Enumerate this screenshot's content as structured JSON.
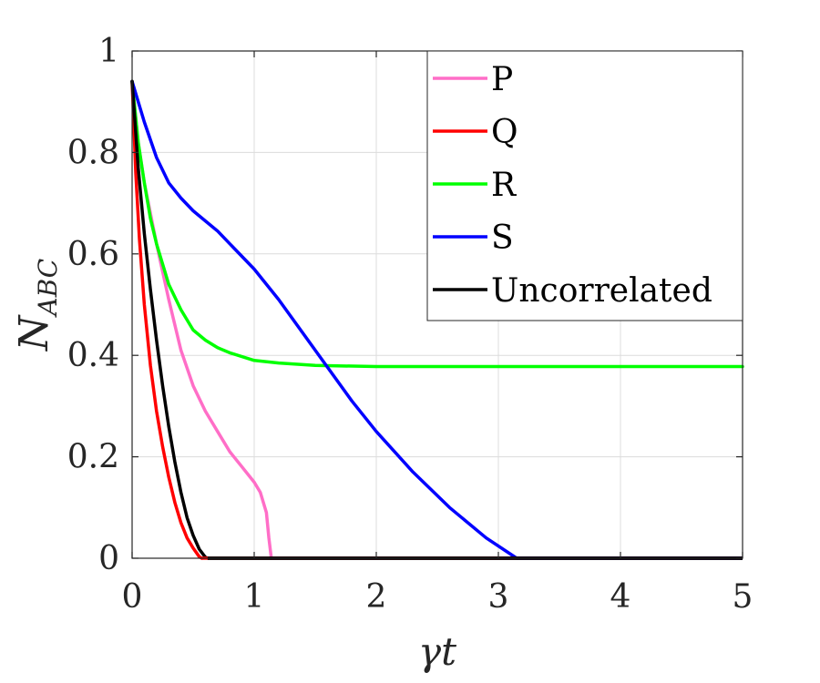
{
  "chart_data": {
    "type": "line",
    "xlabel": "γt",
    "ylabel": "N",
    "ylabel_subscript": "ABC",
    "xlim": [
      0,
      5
    ],
    "ylim": [
      0,
      1
    ],
    "x_ticks": [
      0,
      1,
      2,
      3,
      4,
      5
    ],
    "x_tick_labels": [
      "0",
      "1",
      "2",
      "3",
      "4",
      "5"
    ],
    "y_ticks": [
      0,
      0.2,
      0.4,
      0.6,
      0.8,
      1
    ],
    "y_tick_labels": [
      "0",
      "0.2",
      "0.4",
      "0.6",
      "0.8",
      "1"
    ],
    "grid": true,
    "legend_position": "top-right",
    "series": [
      {
        "name": "P",
        "color": "#ff6ec7",
        "x": [
          0,
          0.05,
          0.1,
          0.2,
          0.3,
          0.4,
          0.5,
          0.6,
          0.7,
          0.8,
          0.9,
          1.0,
          1.05,
          1.1,
          1.12,
          1.14
        ],
        "y": [
          0.94,
          0.82,
          0.74,
          0.62,
          0.51,
          0.41,
          0.34,
          0.29,
          0.25,
          0.21,
          0.18,
          0.15,
          0.13,
          0.09,
          0.04,
          0.0
        ]
      },
      {
        "name": "Q",
        "color": "#ff0000",
        "x": [
          0,
          0.03,
          0.06,
          0.1,
          0.15,
          0.2,
          0.25,
          0.3,
          0.35,
          0.4,
          0.45,
          0.5,
          0.55,
          0.57
        ],
        "y": [
          0.94,
          0.76,
          0.63,
          0.5,
          0.38,
          0.29,
          0.22,
          0.16,
          0.11,
          0.07,
          0.04,
          0.02,
          0.003,
          0.0
        ]
      },
      {
        "name": "R",
        "color": "#00ff00",
        "x": [
          0,
          0.05,
          0.1,
          0.15,
          0.2,
          0.3,
          0.4,
          0.5,
          0.6,
          0.7,
          0.8,
          1.0,
          1.2,
          1.5,
          2.0,
          3.0,
          4.0,
          5.0
        ],
        "y": [
          0.94,
          0.82,
          0.74,
          0.67,
          0.62,
          0.54,
          0.49,
          0.45,
          0.43,
          0.415,
          0.405,
          0.39,
          0.385,
          0.38,
          0.378,
          0.378,
          0.378,
          0.378
        ]
      },
      {
        "name": "S",
        "color": "#0000ff",
        "x": [
          0,
          0.1,
          0.2,
          0.3,
          0.4,
          0.5,
          0.6,
          0.7,
          0.8,
          1.0,
          1.2,
          1.5,
          1.8,
          2.0,
          2.3,
          2.6,
          2.9,
          3.1,
          3.15
        ],
        "y": [
          0.94,
          0.86,
          0.79,
          0.74,
          0.71,
          0.685,
          0.665,
          0.645,
          0.62,
          0.57,
          0.51,
          0.41,
          0.31,
          0.25,
          0.17,
          0.1,
          0.04,
          0.008,
          0.0
        ]
      },
      {
        "name": "Uncorrelated",
        "color": "#000000",
        "x": [
          0,
          0.05,
          0.1,
          0.15,
          0.2,
          0.25,
          0.3,
          0.35,
          0.4,
          0.45,
          0.5,
          0.55,
          0.6,
          0.62
        ],
        "y": [
          0.94,
          0.77,
          0.64,
          0.53,
          0.43,
          0.34,
          0.26,
          0.19,
          0.13,
          0.08,
          0.045,
          0.018,
          0.002,
          0.0
        ]
      }
    ]
  }
}
